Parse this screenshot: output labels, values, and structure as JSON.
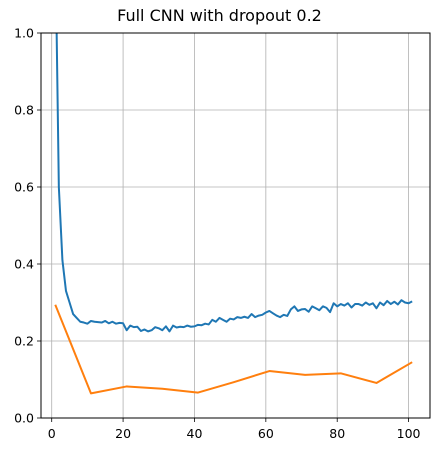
{
  "chart_data": {
    "type": "line",
    "title": "Full CNN with dropout 0.2",
    "xlabel": "",
    "ylabel": "",
    "xlim": [
      -3,
      106
    ],
    "ylim": [
      0.0,
      1.0
    ],
    "grid": true,
    "xticks": [
      0,
      20,
      40,
      60,
      80,
      100
    ],
    "yticks": [
      0.0,
      0.2,
      0.4,
      0.6,
      0.8,
      1.0
    ],
    "series": [
      {
        "color": "#1f77b4",
        "x": [
          1,
          2,
          3,
          4,
          5,
          6,
          7,
          8,
          9,
          10,
          11,
          12,
          13,
          14,
          15,
          16,
          17,
          18,
          19,
          20,
          21,
          22,
          23,
          24,
          25,
          26,
          27,
          28,
          29,
          30,
          31,
          32,
          33,
          34,
          35,
          36,
          37,
          38,
          39,
          40,
          41,
          42,
          43,
          44,
          45,
          46,
          47,
          48,
          49,
          50,
          51,
          52,
          53,
          54,
          55,
          56,
          57,
          58,
          59,
          60,
          61,
          62,
          63,
          64,
          65,
          66,
          67,
          68,
          69,
          70,
          71,
          72,
          73,
          74,
          75,
          76,
          77,
          78,
          79,
          80,
          81,
          82,
          83,
          84,
          85,
          86,
          87,
          88,
          89,
          90,
          91,
          92,
          93,
          94,
          95,
          96,
          97,
          98,
          99,
          100,
          101
        ],
        "y": [
          1.25,
          0.6,
          0.41,
          0.33,
          0.3,
          0.27,
          0.26,
          0.25,
          0.248,
          0.245,
          0.252,
          0.25,
          0.249,
          0.248,
          0.252,
          0.246,
          0.25,
          0.245,
          0.247,
          0.246,
          0.228,
          0.24,
          0.236,
          0.237,
          0.226,
          0.23,
          0.225,
          0.228,
          0.236,
          0.233,
          0.228,
          0.238,
          0.225,
          0.24,
          0.235,
          0.237,
          0.236,
          0.24,
          0.237,
          0.238,
          0.242,
          0.241,
          0.245,
          0.243,
          0.255,
          0.25,
          0.26,
          0.255,
          0.25,
          0.258,
          0.256,
          0.262,
          0.26,
          0.263,
          0.26,
          0.27,
          0.262,
          0.266,
          0.268,
          0.274,
          0.278,
          0.272,
          0.266,
          0.262,
          0.268,
          0.265,
          0.282,
          0.29,
          0.278,
          0.282,
          0.283,
          0.276,
          0.29,
          0.285,
          0.28,
          0.29,
          0.286,
          0.275,
          0.298,
          0.29,
          0.296,
          0.292,
          0.298,
          0.287,
          0.296,
          0.296,
          0.292,
          0.3,
          0.294,
          0.298,
          0.285,
          0.3,
          0.293,
          0.304,
          0.296,
          0.302,
          0.295,
          0.306,
          0.3,
          0.298,
          0.303
        ]
      },
      {
        "color": "#ff7f0e",
        "x": [
          1,
          11,
          21,
          31,
          41,
          51,
          61,
          71,
          81,
          91,
          101
        ],
        "y": [
          0.294,
          0.064,
          0.082,
          0.076,
          0.066,
          0.093,
          0.122,
          0.112,
          0.116,
          0.091,
          0.145
        ]
      }
    ]
  }
}
